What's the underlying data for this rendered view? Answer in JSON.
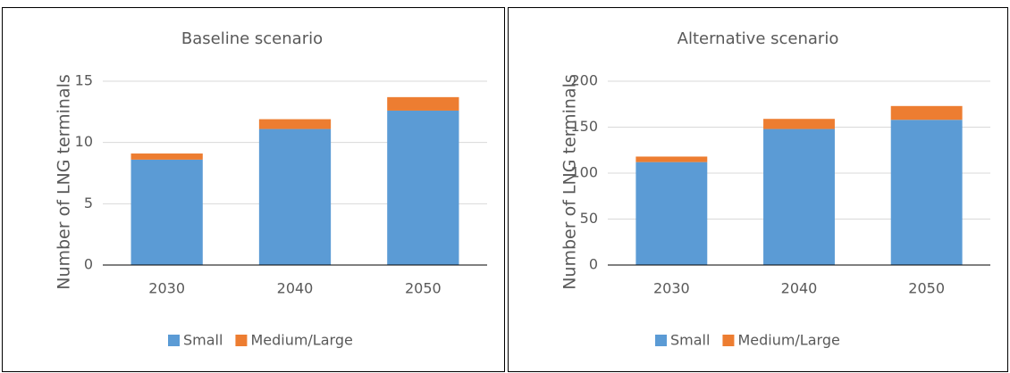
{
  "chart_data": [
    {
      "type": "bar",
      "stacked": true,
      "title": "Baseline scenario",
      "y_label": "Number of LNG terminals",
      "categories": [
        "2030",
        "2040",
        "2050"
      ],
      "series": [
        {
          "name": "Small",
          "color": "#5b9bd5",
          "values": [
            8.6,
            11.1,
            12.6
          ]
        },
        {
          "name": "Medium/Large",
          "color": "#ed7d31",
          "values": [
            0.5,
            0.8,
            1.1
          ]
        }
      ],
      "ylim": [
        0,
        15
      ],
      "yticks": [
        0,
        5,
        10,
        15
      ],
      "grid": true,
      "legend": "bottom"
    },
    {
      "type": "bar",
      "stacked": true,
      "title": "Alternative scenario",
      "y_label": "Number of LNG terminals",
      "categories": [
        "2030",
        "2040",
        "2050"
      ],
      "series": [
        {
          "name": "Small",
          "color": "#5b9bd5",
          "values": [
            112,
            148,
            158
          ]
        },
        {
          "name": "Medium/Large",
          "color": "#ed7d31",
          "values": [
            6,
            11,
            15
          ]
        }
      ],
      "ylim": [
        0,
        200
      ],
      "yticks": [
        0,
        50,
        100,
        150,
        200
      ],
      "grid": true,
      "legend": "bottom"
    }
  ]
}
